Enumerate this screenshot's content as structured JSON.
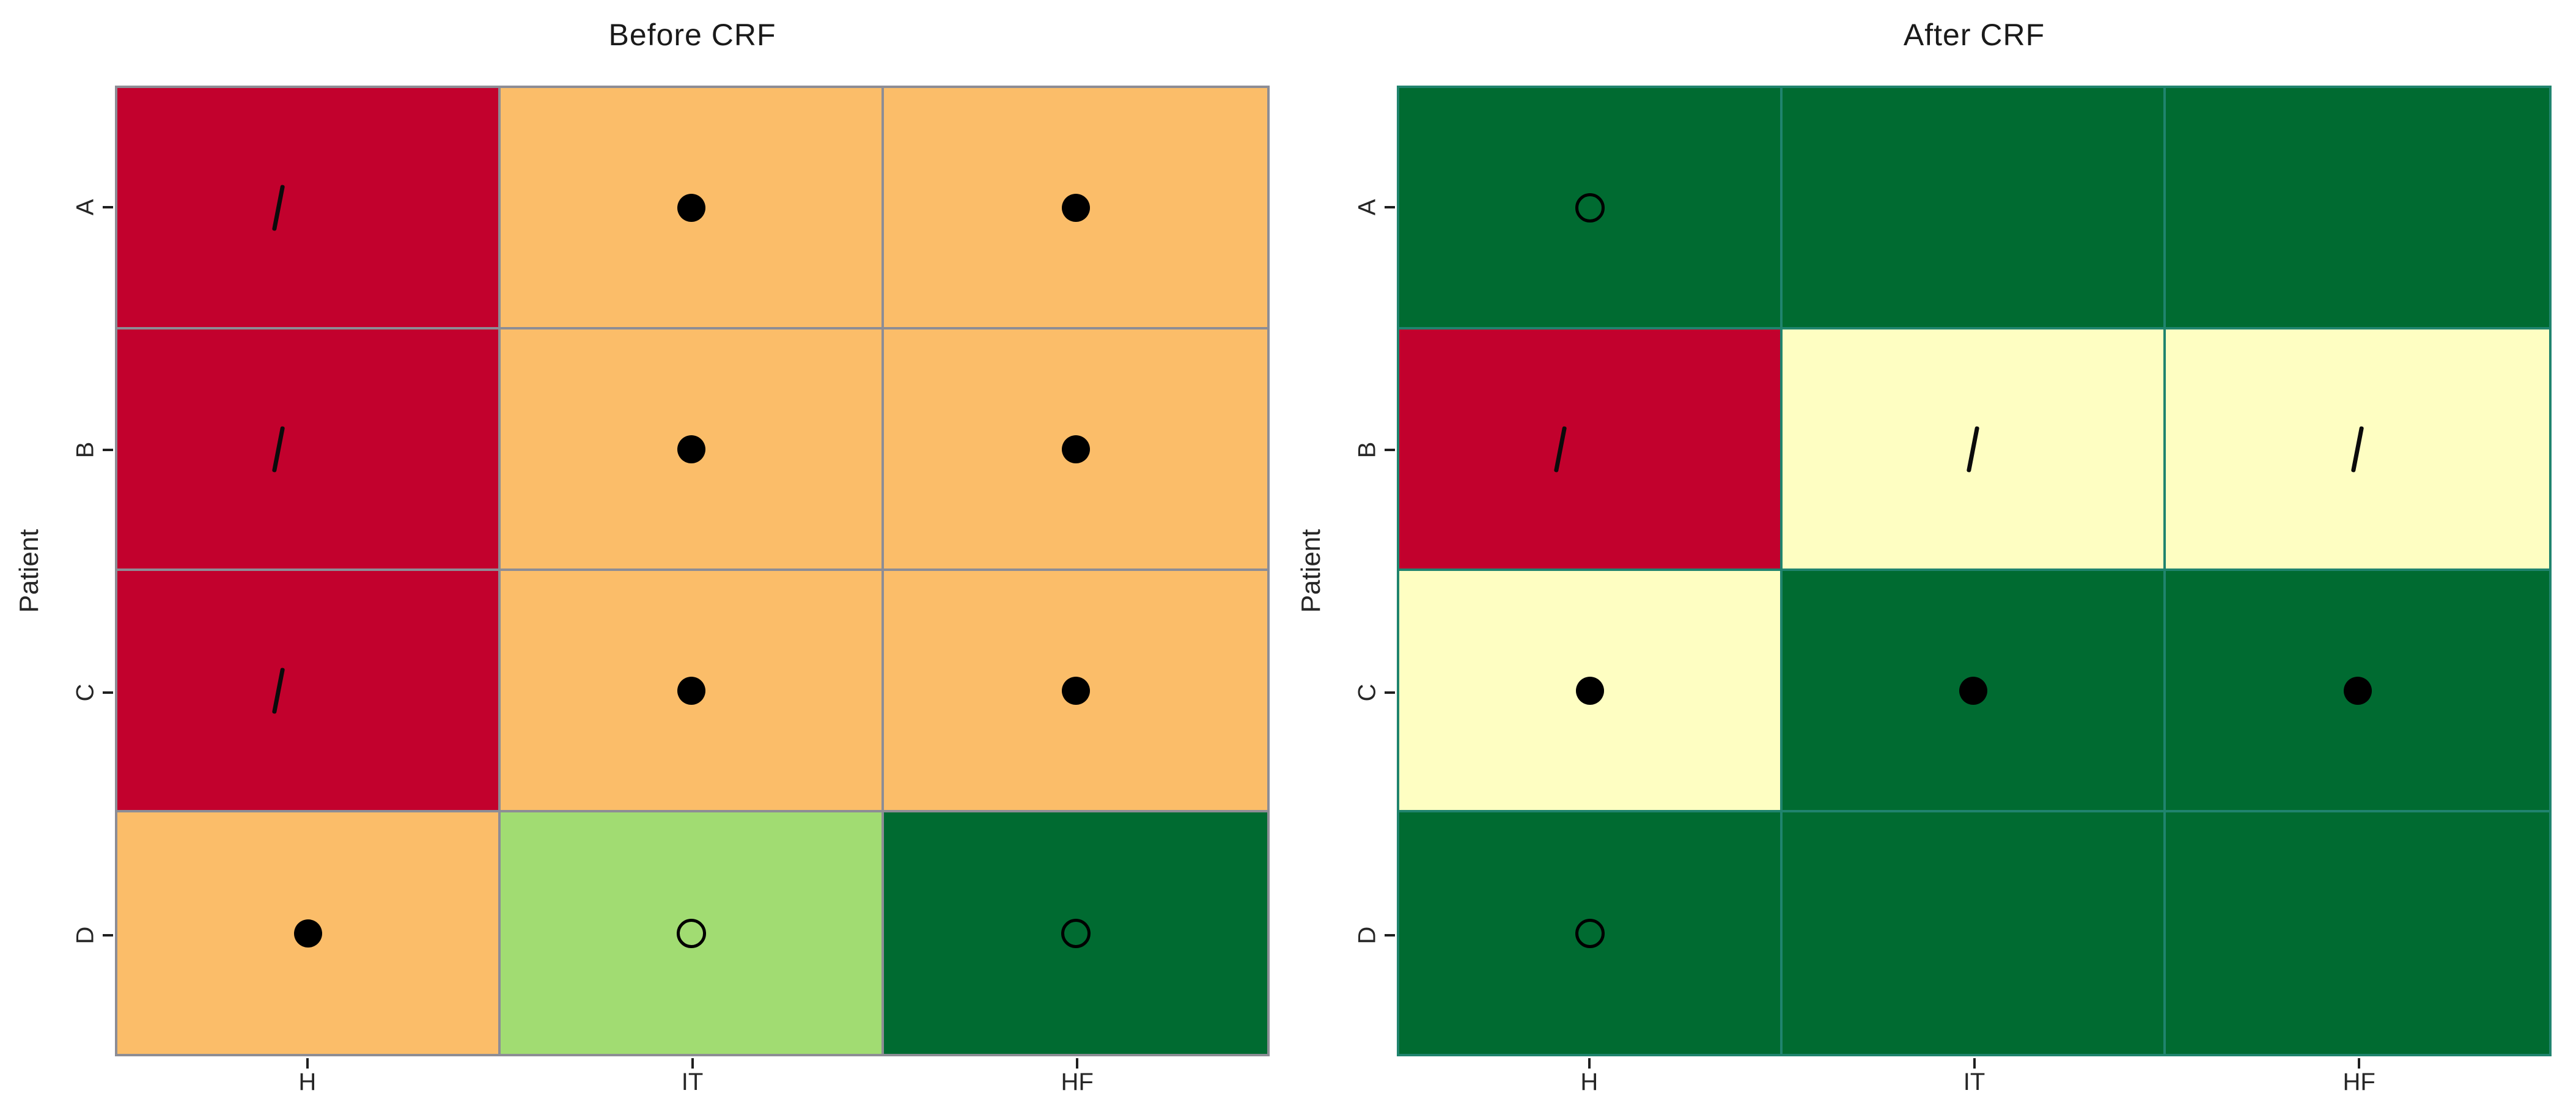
{
  "chart_data": [
    {
      "type": "heatmap",
      "title": "Before CRF",
      "xlabel": "",
      "ylabel": "Patient",
      "x_categories": [
        "H",
        "IT",
        "HF"
      ],
      "y_categories": [
        "A",
        "B",
        "C",
        "D"
      ],
      "legend": "none",
      "grid_color": "#8D8D95",
      "cells": [
        [
          {
            "color": "red",
            "marker": "slash"
          },
          {
            "color": "orange",
            "marker": "filled_circle"
          },
          {
            "color": "orange",
            "marker": "filled_circle"
          }
        ],
        [
          {
            "color": "red",
            "marker": "slash"
          },
          {
            "color": "orange",
            "marker": "filled_circle"
          },
          {
            "color": "orange",
            "marker": "filled_circle"
          }
        ],
        [
          {
            "color": "red",
            "marker": "slash"
          },
          {
            "color": "orange",
            "marker": "filled_circle"
          },
          {
            "color": "orange",
            "marker": "filled_circle"
          }
        ],
        [
          {
            "color": "orange",
            "marker": "filled_circle"
          },
          {
            "color": "light_green",
            "marker": "open_circle"
          },
          {
            "color": "dark_green",
            "marker": "open_circle"
          }
        ]
      ]
    },
    {
      "type": "heatmap",
      "title": "After CRF",
      "xlabel": "",
      "ylabel": "Patient",
      "x_categories": [
        "H",
        "IT",
        "HF"
      ],
      "y_categories": [
        "A",
        "B",
        "C",
        "D"
      ],
      "legend": "none",
      "grid_color": "#20846E",
      "cells": [
        [
          {
            "color": "dark_green",
            "marker": "open_circle"
          },
          {
            "color": "dark_green",
            "marker": "none"
          },
          {
            "color": "dark_green",
            "marker": "none"
          }
        ],
        [
          {
            "color": "red",
            "marker": "slash"
          },
          {
            "color": "pale_yellow",
            "marker": "slash"
          },
          {
            "color": "pale_yellow",
            "marker": "slash"
          }
        ],
        [
          {
            "color": "pale_yellow",
            "marker": "filled_circle"
          },
          {
            "color": "dark_green",
            "marker": "filled_circle"
          },
          {
            "color": "dark_green",
            "marker": "filled_circle"
          }
        ],
        [
          {
            "color": "dark_green",
            "marker": "open_circle"
          },
          {
            "color": "dark_green",
            "marker": "none"
          },
          {
            "color": "dark_green",
            "marker": "none"
          }
        ]
      ]
    }
  ],
  "palette": {
    "red": "#C2012D",
    "orange": "#FBBD69",
    "light_green": "#A1DC72",
    "dark_green": "#006B31",
    "pale_yellow": "#FEFEC2"
  },
  "markers": {
    "filled_circle": "●",
    "open_circle": "○",
    "slash": "/",
    "none": ""
  }
}
